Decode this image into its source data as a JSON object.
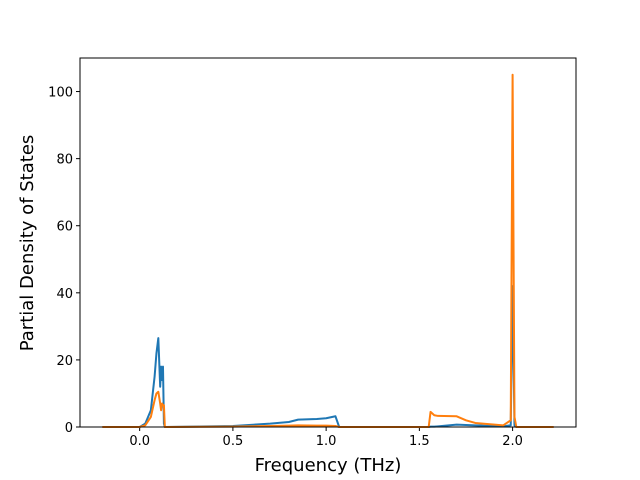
{
  "chart_data": {
    "type": "line",
    "x_label": "Frequency (THz)",
    "y_label": "Partial Density of States",
    "x": [
      -0.2,
      0,
      0.03,
      0.06,
      0.08,
      0.09,
      0.1,
      0.11,
      0.115,
      0.12,
      0.125,
      0.13,
      0.135,
      0.14,
      0.5,
      0.7,
      0.8,
      0.85,
      0.95,
      1.0,
      1.05,
      1.07,
      1.55,
      1.56,
      1.58,
      1.6,
      1.7,
      1.75,
      1.8,
      1.95,
      1.99,
      2.0,
      2.01,
      2.02,
      2.22
    ],
    "series": [
      {
        "color": "#1f77b4",
        "values": [
          0,
          0,
          1,
          5,
          15,
          22,
          26.5,
          12,
          18,
          14,
          18,
          1,
          0,
          0,
          0.3,
          1,
          1.5,
          2.2,
          2.4,
          2.6,
          3.2,
          0,
          0,
          0.1,
          0.1,
          0.2,
          0.7,
          0.6,
          0.5,
          0.2,
          0.5,
          42,
          0.5,
          0,
          0
        ]
      },
      {
        "color": "#ff7f0e",
        "values": [
          0,
          0,
          0.5,
          3,
          8,
          10,
          10.5,
          7,
          5,
          7,
          6.5,
          6.5,
          0,
          0,
          0.1,
          0.3,
          0.4,
          0.5,
          0.4,
          0.4,
          0.3,
          0,
          0,
          4.5,
          3.5,
          3.3,
          3.2,
          2,
          1.2,
          0.5,
          2,
          105,
          3,
          0,
          0
        ]
      }
    ],
    "xlim": [
      -0.32,
      2.34
    ],
    "ylim": [
      0,
      110
    ],
    "xticks": [
      {
        "value": 0,
        "label": "0.0"
      },
      0.5,
      {
        "value": 1,
        "label": "1.0"
      },
      1.5,
      {
        "value": 2,
        "label": "2.0"
      }
    ],
    "yticks": [
      0,
      20,
      40,
      60,
      80,
      100
    ]
  }
}
